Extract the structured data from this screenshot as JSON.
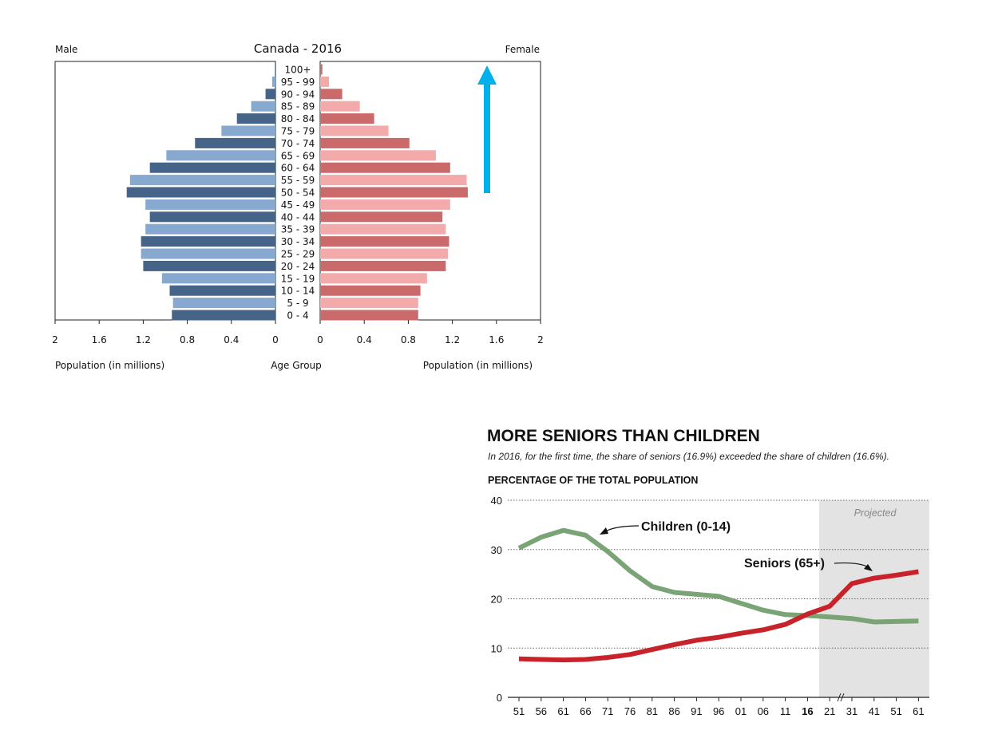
{
  "chart_data": [
    {
      "type": "bar",
      "subtype": "population-pyramid",
      "title": "Canada - 2016",
      "left_label": "Male",
      "right_label": "Female",
      "xlabel_left": "Population (in millions)",
      "xlabel_center": "Age Group",
      "xlabel_right": "Population (in millions)",
      "xlim": [
        0,
        2
      ],
      "xticks": [
        "2",
        "1.6",
        "1.2",
        "0.8",
        "0.4",
        "0"
      ],
      "xticks_right": [
        "0",
        "0.4",
        "0.8",
        "1.2",
        "1.6",
        "2"
      ],
      "categories": [
        "0 - 4",
        "5 - 9",
        "10 - 14",
        "15 - 19",
        "20 - 24",
        "25 - 29",
        "30 - 34",
        "35 - 39",
        "40 - 44",
        "45 - 49",
        "50 - 54",
        "55 - 59",
        "60 - 64",
        "65 - 69",
        "70 - 74",
        "75 - 79",
        "80 - 84",
        "85 - 89",
        "90 - 94",
        "95 - 99",
        "100+"
      ],
      "series": [
        {
          "name": "Male",
          "values": [
            0.94,
            0.93,
            0.96,
            1.03,
            1.2,
            1.22,
            1.22,
            1.18,
            1.14,
            1.18,
            1.35,
            1.32,
            1.14,
            0.99,
            0.73,
            0.49,
            0.35,
            0.22,
            0.09,
            0.03,
            0.005
          ]
        },
        {
          "name": "Female",
          "values": [
            0.89,
            0.89,
            0.91,
            0.97,
            1.14,
            1.16,
            1.17,
            1.14,
            1.11,
            1.18,
            1.34,
            1.33,
            1.18,
            1.05,
            0.81,
            0.62,
            0.49,
            0.36,
            0.2,
            0.08,
            0.02
          ]
        }
      ],
      "colors": {
        "male_dark": "#456487",
        "male_light": "#87a9cf",
        "female_dark": "#cb6a6a",
        "female_light": "#f2aaaa",
        "arrow": "#00b0ea"
      }
    },
    {
      "type": "line",
      "title": "MORE SENIORS THAN CHILDREN",
      "subtitle": "In 2016, for the first time, the share of seniors (16.9%) exceeded the share of children (16.6%).",
      "ylabel": "PERCENTAGE OF THE TOTAL POPULATION",
      "ylim": [
        0,
        40
      ],
      "yticks": [
        "0",
        "10",
        "20",
        "30",
        "40"
      ],
      "x": [
        "51",
        "56",
        "61",
        "66",
        "71",
        "76",
        "81",
        "86",
        "91",
        "96",
        "01",
        "06",
        "11",
        "16",
        "21",
        "31",
        "41",
        "51",
        "61"
      ],
      "highlight_tick": "16",
      "projected_label": "Projected",
      "series": [
        {
          "name": "Children (0-14)",
          "color": "#7aa476",
          "values": [
            30.3,
            32.5,
            33.9,
            32.9,
            29.6,
            25.7,
            22.5,
            21.3,
            20.9,
            20.5,
            19.1,
            17.7,
            16.8,
            16.6,
            16.3,
            16.0,
            15.3,
            15.4,
            15.5
          ]
        },
        {
          "name": "Seniors (65+)",
          "color": "#c8232b",
          "values": [
            7.8,
            7.7,
            7.6,
            7.7,
            8.1,
            8.7,
            9.7,
            10.7,
            11.6,
            12.2,
            13.0,
            13.7,
            14.8,
            16.9,
            18.5,
            23.1,
            24.2,
            24.8,
            25.5
          ]
        }
      ]
    }
  ]
}
